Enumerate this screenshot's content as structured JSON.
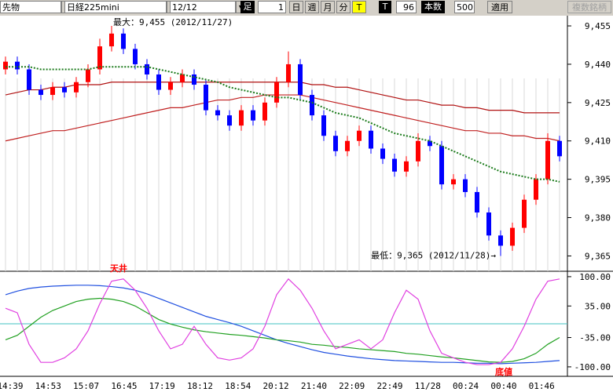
{
  "toolbar": {
    "items": [
      "先物",
      "日経225mini",
      "12/12",
      "足",
      "1",
      "日",
      "週",
      "月",
      "分",
      "T",
      "T",
      "96",
      "本数",
      "500",
      "適用",
      "複数銘柄"
    ]
  },
  "chart_data": [
    {
      "type": "candlestick",
      "annotations": [
        "最大：9,455 (2012/11/27)",
        "最低：9,365 (2012/11/28)→"
      ],
      "ylim": [
        9359,
        9459
      ],
      "yticks": [
        {
          "value": 9455,
          "label": "9,455"
        },
        {
          "value": 9440,
          "label": "9,440"
        },
        {
          "value": 9425,
          "label": "9,425"
        },
        {
          "value": 9410,
          "label": "9,410"
        },
        {
          "value": 9395,
          "label": "9,395"
        },
        {
          "value": 9380,
          "label": "9,380"
        },
        {
          "value": 9365,
          "label": "9,365"
        }
      ],
      "up_color": "#ff0000",
      "down_color": "#0000ff",
      "open": [
        9438,
        9441,
        9438,
        9430,
        9428,
        9431,
        9429,
        9433,
        9438,
        9447,
        9452,
        9446,
        9440,
        9436,
        9430,
        9433,
        9436,
        9432,
        9422,
        9420,
        9416,
        9422,
        9418,
        9425,
        9433,
        9440,
        9428,
        9420,
        9412,
        9406,
        9410,
        9414,
        9407,
        9403,
        9398,
        9402,
        9410,
        9408,
        9393,
        9395,
        9390,
        9382,
        9373,
        9369,
        9376,
        9387,
        9395,
        9410
      ],
      "high": [
        9443,
        9443,
        9440,
        9432,
        9433,
        9433,
        9435,
        9440,
        9450,
        9455,
        9454,
        9448,
        9442,
        9438,
        9435,
        9438,
        9438,
        9434,
        9424,
        9422,
        9424,
        9424,
        9427,
        9435,
        9445,
        9442,
        9430,
        9422,
        9414,
        9412,
        9416,
        9416,
        9409,
        9405,
        9404,
        9413,
        9412,
        9410,
        9397,
        9397,
        9392,
        9384,
        9375,
        9378,
        9389,
        9397,
        9413,
        9412
      ],
      "low": [
        9436,
        9436,
        9428,
        9426,
        9426,
        9427,
        9427,
        9431,
        9436,
        9445,
        9444,
        9438,
        9434,
        9428,
        9428,
        9431,
        9430,
        9420,
        9418,
        9414,
        9414,
        9416,
        9416,
        9423,
        9431,
        9426,
        9418,
        9410,
        9404,
        9404,
        9408,
        9405,
        9401,
        9396,
        9396,
        9400,
        9406,
        9391,
        9391,
        9388,
        9380,
        9371,
        9365,
        9367,
        9374,
        9385,
        9393,
        9402
      ],
      "close": [
        9441,
        9438,
        9430,
        9428,
        9431,
        9429,
        9433,
        9438,
        9447,
        9452,
        9446,
        9440,
        9436,
        9430,
        9433,
        9436,
        9432,
        9422,
        9420,
        9416,
        9422,
        9418,
        9425,
        9433,
        9440,
        9428,
        9420,
        9412,
        9406,
        9410,
        9414,
        9407,
        9403,
        9398,
        9402,
        9410,
        9408,
        9393,
        9395,
        9390,
        9382,
        9373,
        9369,
        9376,
        9387,
        9395,
        9410,
        9404
      ],
      "lines": [
        {
          "color": "#1a7a1a",
          "values": [
            9439,
            9439,
            9439,
            9438,
            9438,
            9438,
            9438,
            9438,
            9439,
            9439,
            9439,
            9439,
            9439,
            9438,
            9437,
            9436,
            9435,
            9434,
            9433,
            9431,
            9430,
            9429,
            9428,
            9427,
            9427,
            9426,
            9425,
            9423,
            9421,
            9420,
            9419,
            9417,
            9415,
            9413,
            9412,
            9411,
            9410,
            9408,
            9406,
            9404,
            9402,
            9400,
            9398,
            9397,
            9396,
            9395,
            9395,
            9394
          ]
        },
        {
          "color": "#b01010",
          "values": [
            9428,
            9429,
            9430,
            9430,
            9431,
            9431,
            9432,
            9432,
            9432,
            9433,
            9433,
            9433,
            9433,
            9433,
            9433,
            9433,
            9433,
            9433,
            9433,
            9433,
            9433,
            9433,
            9433,
            9433,
            9433,
            9433,
            9432,
            9432,
            9431,
            9431,
            9430,
            9429,
            9428,
            9427,
            9426,
            9426,
            9425,
            9424,
            9424,
            9423,
            9423,
            9422,
            9422,
            9422,
            9421,
            9421,
            9421,
            9421
          ]
        },
        {
          "color": "#c02020",
          "values": [
            9410,
            9411,
            9412,
            9413,
            9414,
            9414,
            9415,
            9416,
            9417,
            9418,
            9419,
            9420,
            9421,
            9422,
            9423,
            9423,
            9424,
            9425,
            9426,
            9426,
            9427,
            9427,
            9428,
            9428,
            9428,
            9428,
            9427,
            9426,
            9425,
            9424,
            9423,
            9422,
            9421,
            9420,
            9419,
            9418,
            9417,
            9416,
            9415,
            9414,
            9414,
            9413,
            9413,
            9412,
            9412,
            9411,
            9411,
            9410
          ]
        }
      ]
    },
    {
      "type": "line",
      "annotations": [
        "天井",
        "底値"
      ],
      "ylim": [
        -121,
        112
      ],
      "yticks": [
        {
          "value": 100,
          "label": "100.00"
        },
        {
          "value": 35,
          "label": "35.00"
        },
        {
          "value": -35,
          "label": "-35.00"
        },
        {
          "value": -100,
          "label": "-100.00"
        }
      ],
      "x_labels": [
        "14:39",
        "14:53",
        "15:07",
        "16:45",
        "17:19",
        "18:12",
        "18:54",
        "20:12",
        "21:40",
        "22:09",
        "22:49",
        "11/28",
        "00:24",
        "00:40",
        "01:46"
      ],
      "lines": [
        {
          "color": "#2050e0",
          "values": [
            60,
            68,
            74,
            77,
            79,
            80,
            81,
            81,
            80,
            78,
            75,
            70,
            62,
            52,
            42,
            32,
            22,
            12,
            5,
            -2,
            -10,
            -20,
            -30,
            -40,
            -48,
            -55,
            -62,
            -68,
            -72,
            -76,
            -79,
            -82,
            -84,
            -86,
            -87,
            -88,
            -89,
            -90,
            -90,
            -91,
            -92,
            -92,
            -93,
            -92,
            -91,
            -90,
            -88,
            -86
          ]
        },
        {
          "color": "#20a020",
          "values": [
            -40,
            -30,
            -10,
            10,
            25,
            35,
            45,
            50,
            52,
            50,
            45,
            35,
            20,
            5,
            -5,
            -12,
            -18,
            -22,
            -25,
            -28,
            -30,
            -33,
            -36,
            -40,
            -42,
            -45,
            -50,
            -52,
            -55,
            -57,
            -60,
            -62,
            -64,
            -66,
            -70,
            -72,
            -75,
            -78,
            -80,
            -83,
            -86,
            -89,
            -90,
            -88,
            -82,
            -70,
            -50,
            -35
          ]
        },
        {
          "color": "#e040e0",
          "values": [
            30,
            20,
            -50,
            -90,
            -90,
            -80,
            -60,
            -20,
            40,
            90,
            95,
            70,
            30,
            -20,
            -60,
            -50,
            -10,
            -50,
            -80,
            -85,
            -80,
            -60,
            -10,
            60,
            95,
            70,
            30,
            -20,
            -60,
            -50,
            -40,
            -60,
            -40,
            20,
            70,
            50,
            -20,
            -70,
            -80,
            -90,
            -95,
            -95,
            -90,
            -60,
            -10,
            50,
            90,
            95
          ]
        }
      ]
    }
  ]
}
